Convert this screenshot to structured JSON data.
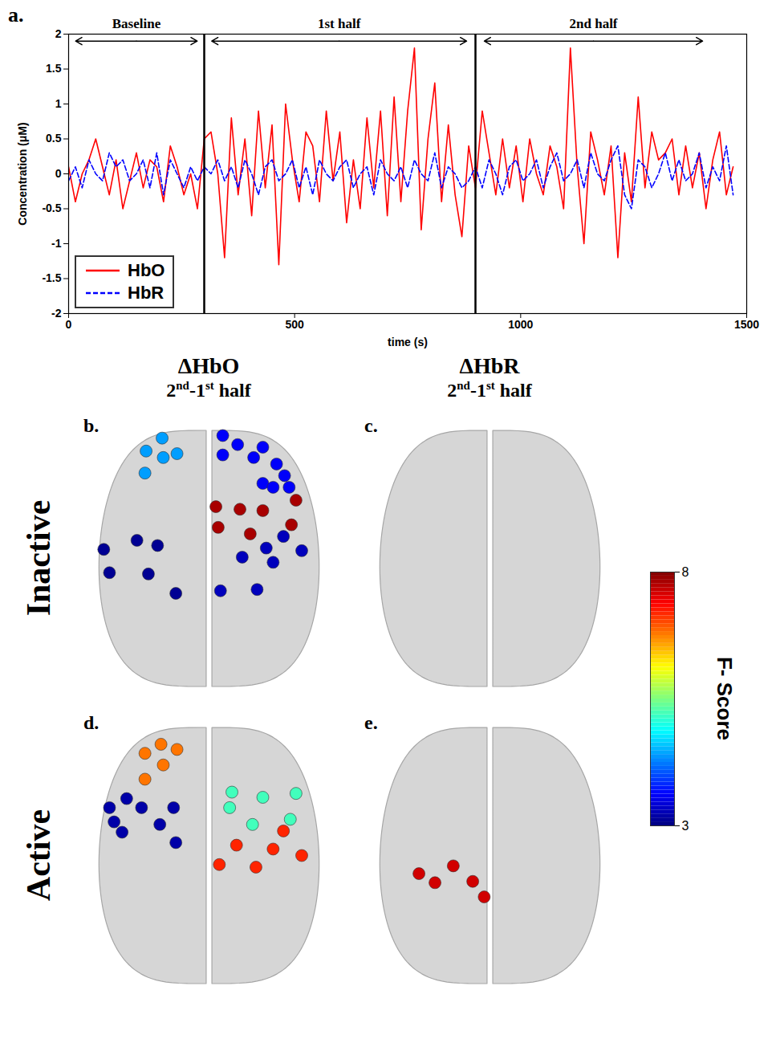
{
  "chart_data": [
    {
      "type": "line",
      "panel": "a.",
      "x_label": "time (s)",
      "y_label": "Concentration (μM)",
      "xlim": [
        0,
        1500
      ],
      "xticks": [
        0,
        500,
        1000,
        1500
      ],
      "ylim": [
        -2,
        2
      ],
      "yticks": [
        -2,
        -1.5,
        -1,
        -0.5,
        0,
        0.5,
        1,
        1.5,
        2
      ],
      "legend": "bottom-left",
      "boundaries": [
        300,
        900
      ],
      "annotations": [
        {
          "label": "Baseline",
          "start": 12,
          "end": 288
        },
        {
          "label": "1st half",
          "start": 313,
          "end": 884
        },
        {
          "label": "2nd half",
          "start": 916,
          "end": 1406
        }
      ],
      "x": [
        0,
        15,
        30,
        45,
        60,
        75,
        90,
        105,
        120,
        135,
        150,
        165,
        180,
        195,
        210,
        225,
        240,
        255,
        270,
        285,
        300,
        315,
        330,
        345,
        360,
        375,
        390,
        405,
        420,
        435,
        450,
        465,
        480,
        495,
        510,
        525,
        540,
        555,
        570,
        585,
        600,
        615,
        630,
        645,
        660,
        675,
        690,
        705,
        720,
        735,
        750,
        765,
        780,
        795,
        810,
        825,
        840,
        855,
        870,
        885,
        900,
        915,
        930,
        945,
        960,
        975,
        990,
        1005,
        1020,
        1035,
        1050,
        1065,
        1080,
        1095,
        1110,
        1125,
        1140,
        1155,
        1170,
        1185,
        1200,
        1215,
        1230,
        1245,
        1260,
        1275,
        1290,
        1305,
        1320,
        1335,
        1350,
        1365,
        1380,
        1395,
        1410,
        1425,
        1440,
        1455,
        1470
      ],
      "series": [
        {
          "name": "HbO",
          "color": "#ff0000",
          "line_style": "solid",
          "values": [
            0.1,
            -0.4,
            0.0,
            0.2,
            0.5,
            0.1,
            -0.3,
            0.2,
            -0.5,
            -0.1,
            0.3,
            -0.2,
            0.2,
            0.1,
            -0.4,
            0.4,
            0.1,
            -0.3,
            0.0,
            -0.5,
            0.5,
            0.6,
            0.0,
            -1.2,
            0.8,
            -0.3,
            0.5,
            -0.6,
            0.9,
            -0.2,
            0.7,
            -1.3,
            1.0,
            0.2,
            -0.4,
            0.6,
            0.4,
            -0.4,
            0.9,
            -0.1,
            0.6,
            -0.7,
            0.2,
            -0.5,
            0.8,
            -0.2,
            0.9,
            -0.6,
            1.1,
            -0.4,
            0.9,
            1.8,
            -0.8,
            0.5,
            1.3,
            -0.4,
            0.7,
            -0.3,
            -0.9,
            0.4,
            -0.2,
            0.9,
            0.3,
            -0.3,
            0.5,
            -0.2,
            0.4,
            -0.4,
            0.5,
            0.0,
            -0.3,
            0.4,
            0.1,
            -0.5,
            1.8,
            0.1,
            -1.0,
            0.6,
            0.2,
            -0.3,
            0.4,
            -1.2,
            0.3,
            -0.4,
            1.1,
            -0.2,
            0.6,
            0.2,
            0.3,
            0.5,
            -0.3,
            0.4,
            -0.2,
            0.3,
            -0.5,
            0.2,
            0.6,
            -0.3,
            0.1
          ]
        },
        {
          "name": "HbR",
          "color": "#0000ff",
          "line_style": "dashed",
          "values": [
            -0.1,
            0.1,
            -0.2,
            0.2,
            0.0,
            -0.1,
            0.3,
            0.1,
            0.2,
            -0.1,
            0.0,
            0.2,
            -0.2,
            0.3,
            -0.3,
            0.2,
            0.0,
            -0.2,
            0.1,
            -0.1,
            0.1,
            0.0,
            0.2,
            -0.1,
            0.1,
            -0.2,
            0.2,
            0.0,
            -0.3,
            0.1,
            0.2,
            -0.1,
            0.0,
            0.2,
            -0.2,
            0.1,
            -0.3,
            0.2,
            0.0,
            -0.1,
            0.1,
            0.2,
            -0.2,
            0.0,
            0.1,
            -0.3,
            0.2,
            0.0,
            -0.1,
            0.1,
            -0.2,
            0.2,
            0.0,
            -0.1,
            0.3,
            -0.2,
            0.1,
            0.0,
            -0.2,
            -0.1,
            0.1,
            -0.2,
            0.2,
            0.0,
            -0.3,
            0.1,
            0.2,
            -0.1,
            0.0,
            0.2,
            -0.2,
            0.1,
            0.3,
            -0.1,
            0.0,
            0.2,
            -0.2,
            0.3,
            0.0,
            -0.1,
            0.2,
            0.4,
            -0.3,
            -0.5,
            0.2,
            0.1,
            -0.2,
            0.0,
            0.3,
            -0.1,
            0.2,
            -0.1,
            0.0,
            0.3,
            -0.2,
            0.1,
            -0.1,
            0.4,
            -0.3
          ]
        }
      ]
    },
    {
      "type": "scatter",
      "xlim": [
        -1.08,
        1.08
      ],
      "ylim": [
        -1.08,
        1.08
      ],
      "tick_labels": false,
      "columns": [
        {
          "title": "ΔHbO",
          "subtitle": "2nd-1st half"
        },
        {
          "title": "ΔHbR",
          "subtitle": "2nd-1st half"
        }
      ],
      "rows": [
        {
          "label": "Inactive",
          "panels": [
            {
              "panel": "b.",
              "x": [
                -0.41,
                -0.28,
                -0.55,
                -0.4,
                -0.56,
                0.12,
                0.25,
                0.47,
                0.12,
                0.39,
                0.59,
                0.66,
                0.47,
                0.56,
                0.7,
                0.06,
                0.27,
                0.47,
                0.76,
                0.08,
                0.36,
                0.72,
                -0.92,
                -0.63,
                -0.45,
                -0.87,
                -0.53,
                -0.29,
                0.29,
                0.5,
                0.65,
                0.56,
                0.81,
                0.1,
                0.42
              ],
              "y": [
                0.93,
                0.81,
                0.83,
                0.78,
                0.66,
                0.95,
                0.88,
                0.86,
                0.8,
                0.78,
                0.73,
                0.64,
                0.58,
                0.55,
                0.55,
                0.4,
                0.38,
                0.37,
                0.45,
                0.24,
                0.19,
                0.26,
                0.07,
                0.14,
                0.1,
                -0.11,
                -0.12,
                -0.27,
                0.01,
                0.08,
                0.17,
                -0.03,
                0.06,
                -0.25,
                -0.24
              ],
              "values": [
                4.4,
                4.4,
                4.4,
                4.4,
                4.4,
                3.6,
                3.6,
                3.6,
                3.6,
                3.6,
                3.6,
                3.6,
                3.6,
                3.6,
                3.6,
                7.8,
                7.8,
                7.8,
                7.8,
                7.8,
                7.8,
                7.8,
                3.1,
                3.1,
                3.1,
                3.1,
                3.1,
                3.1,
                3.3,
                3.3,
                3.3,
                3.3,
                3.3,
                3.3,
                3.3
              ]
            },
            {
              "panel": "c.",
              "x": [],
              "y": [],
              "values": []
            }
          ]
        },
        {
          "label": "Active",
          "panels": [
            {
              "panel": "d.",
              "x": [
                -0.42,
                -0.28,
                -0.56,
                -0.4,
                -0.56,
                -0.72,
                -0.87,
                -0.59,
                -0.31,
                -0.83,
                -0.43,
                -0.76,
                -0.29,
                0.2,
                0.47,
                0.76,
                0.18,
                0.38,
                0.71,
                0.65,
                0.24,
                0.56,
                0.81,
                0.09,
                0.41
              ],
              "y": [
                0.86,
                0.82,
                0.79,
                0.7,
                0.59,
                0.44,
                0.37,
                0.37,
                0.37,
                0.26,
                0.24,
                0.18,
                0.1,
                0.49,
                0.45,
                0.48,
                0.37,
                0.24,
                0.28,
                0.19,
                0.08,
                0.05,
                0.0,
                -0.07,
                -0.09
              ],
              "values": [
                6.8,
                6.8,
                6.8,
                6.8,
                6.8,
                3.2,
                3.2,
                3.2,
                3.2,
                3.2,
                3.2,
                3.2,
                3.2,
                5.2,
                5.2,
                5.2,
                5.2,
                5.2,
                5.2,
                7.2,
                7.2,
                7.2,
                7.2,
                7.2,
                7.2
              ]
            },
            {
              "panel": "e.",
              "x": [
                -0.62,
                -0.48,
                -0.32,
                -0.15,
                -0.05
              ],
              "y": [
                -0.14,
                -0.21,
                -0.08,
                -0.2,
                -0.32
              ],
              "values": [
                7.6,
                7.6,
                7.6,
                7.6,
                7.6
              ]
            }
          ]
        }
      ],
      "colorbar": {
        "label": "F- Score",
        "range": [
          3,
          8
        ],
        "ticks": [
          3,
          8
        ],
        "colors": [
          "#00007f",
          "#0000ff",
          "#007fff",
          "#00ffff",
          "#7fff7f",
          "#ffff00",
          "#ff7f00",
          "#ff0000",
          "#7f0000"
        ]
      }
    }
  ]
}
